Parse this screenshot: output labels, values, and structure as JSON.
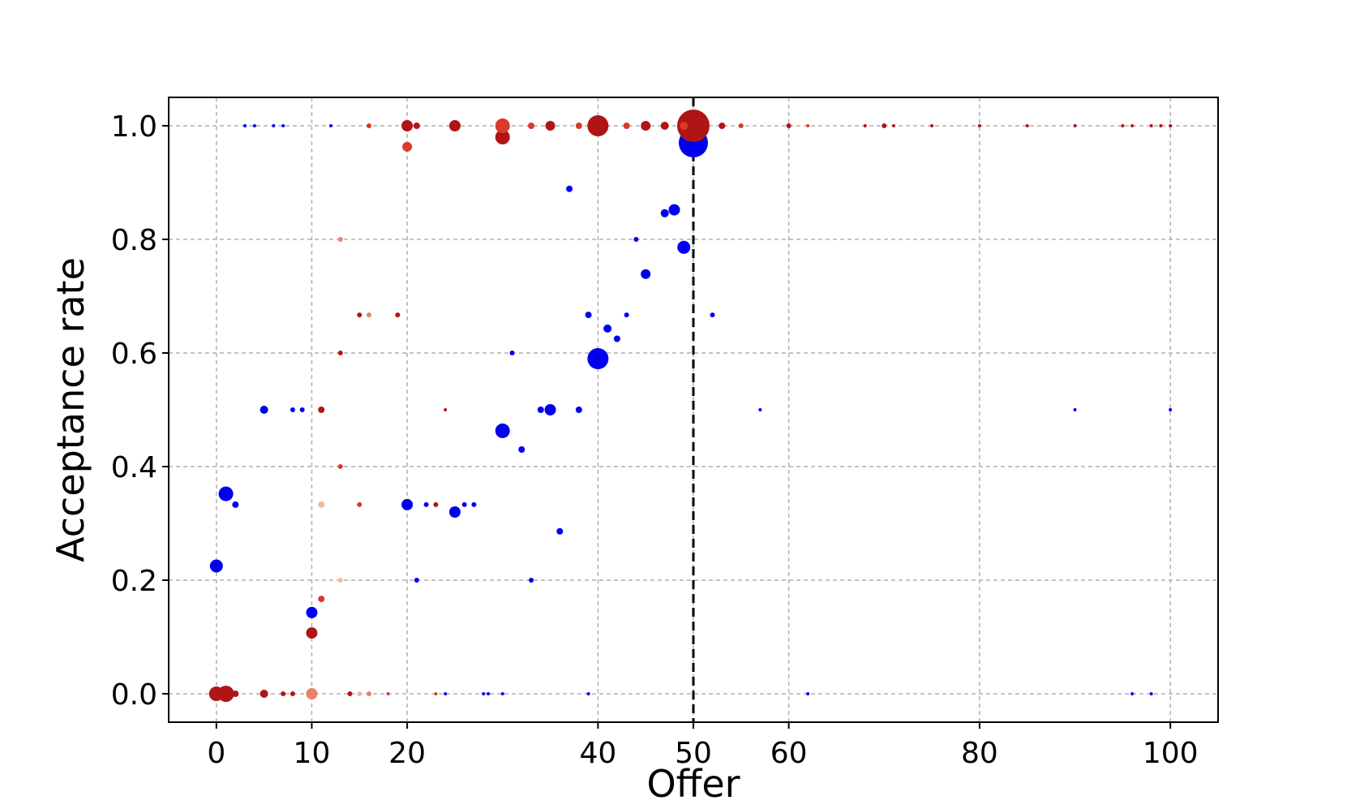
{
  "chart_data": {
    "type": "scatter",
    "title": "",
    "xlabel": "Offer",
    "ylabel": "Acceptance rate",
    "xlim": [
      -5,
      105
    ],
    "ylim": [
      -0.05,
      1.05
    ],
    "x_ticks": [
      0,
      10,
      20,
      40,
      50,
      60,
      80,
      100
    ],
    "x_tick_labels": [
      "0",
      "10",
      "20",
      "40",
      "50",
      "60",
      "80",
      "100"
    ],
    "y_ticks": [
      0.0,
      0.2,
      0.4,
      0.6,
      0.8,
      1.0
    ],
    "y_tick_labels": [
      "0.0",
      "0.2",
      "0.4",
      "0.6",
      "0.8",
      "1.0"
    ],
    "grid": true,
    "reference_line": {
      "x": 50,
      "style": "dashed",
      "color": "#000000"
    },
    "colors": {
      "blue": "#0000ee",
      "dark_red": "#b01515",
      "red": "#d93a2b",
      "salmon": "#e8826a",
      "light_salmon": "#f2b8a0"
    },
    "series": [
      {
        "color": "#0000ee",
        "points": [
          [
            0,
            0.225,
            8
          ],
          [
            1,
            0.352,
            9
          ],
          [
            2,
            0.333,
            4
          ],
          [
            5,
            0.5,
            5
          ],
          [
            8,
            0.5,
            3
          ],
          [
            9,
            0.5,
            3
          ],
          [
            10,
            0.143,
            7
          ],
          [
            20,
            0.333,
            7
          ],
          [
            22,
            0.333,
            3
          ],
          [
            25,
            0.32,
            7
          ],
          [
            26,
            0.333,
            3
          ],
          [
            27,
            0.333,
            3
          ],
          [
            30,
            0.463,
            9
          ],
          [
            31,
            0.6,
            3
          ],
          [
            32,
            0.43,
            4
          ],
          [
            33,
            0.2,
            3
          ],
          [
            34,
            0.5,
            4
          ],
          [
            35,
            0.5,
            7
          ],
          [
            36,
            0.286,
            4
          ],
          [
            37,
            0.889,
            4
          ],
          [
            38,
            0.5,
            4
          ],
          [
            39,
            0.667,
            4
          ],
          [
            40,
            0.59,
            13
          ],
          [
            41,
            0.643,
            5
          ],
          [
            42,
            0.625,
            4
          ],
          [
            43,
            0.667,
            3
          ],
          [
            44,
            0.8,
            3
          ],
          [
            45,
            0.739,
            6
          ],
          [
            47,
            0.846,
            5
          ],
          [
            48,
            0.852,
            7
          ],
          [
            49,
            0.786,
            8
          ],
          [
            50,
            0.97,
            18
          ],
          [
            52,
            0.667,
            3
          ],
          [
            57,
            0.5,
            2
          ],
          [
            21,
            0.2,
            3
          ],
          [
            90,
            0.5,
            2
          ],
          [
            100,
            0.5,
            2
          ],
          [
            3,
            1.0,
            2
          ],
          [
            4,
            1.0,
            2
          ],
          [
            6,
            1.0,
            2
          ],
          [
            7,
            1.0,
            2
          ],
          [
            12,
            1.0,
            2
          ],
          [
            24,
            0.0,
            2
          ],
          [
            28,
            0.0,
            2
          ],
          [
            28.5,
            0.0,
            2
          ],
          [
            30,
            0.0,
            2
          ],
          [
            39,
            0.0,
            2
          ],
          [
            62,
            0.0,
            2
          ],
          [
            96,
            0.0,
            2
          ],
          [
            98,
            0.0,
            2
          ]
        ]
      },
      {
        "color": "#b01515",
        "points": [
          [
            0,
            0.0,
            9
          ],
          [
            1,
            0.0,
            10
          ],
          [
            2,
            0.0,
            4
          ],
          [
            5,
            0.0,
            5
          ],
          [
            7,
            0.0,
            3
          ],
          [
            8,
            0.0,
            3
          ],
          [
            14,
            0.0,
            3
          ],
          [
            10,
            0.107,
            7
          ],
          [
            11,
            0.5,
            4
          ],
          [
            13,
            0.6,
            3
          ],
          [
            15,
            0.667,
            3
          ],
          [
            19,
            0.667,
            3
          ],
          [
            23,
            0.333,
            3
          ],
          [
            24,
            0.5,
            2
          ],
          [
            20,
            1.0,
            7
          ],
          [
            21,
            1.0,
            4
          ],
          [
            25,
            1.0,
            7
          ],
          [
            30,
            0.98,
            9
          ],
          [
            35,
            1.0,
            6
          ],
          [
            40,
            1.0,
            13
          ],
          [
            45,
            1.0,
            6
          ],
          [
            47,
            1.0,
            5
          ],
          [
            50,
            1.0,
            20
          ],
          [
            53,
            1.0,
            4
          ],
          [
            60,
            1.0,
            3
          ],
          [
            68,
            1.0,
            2
          ],
          [
            70,
            1.0,
            3
          ],
          [
            71,
            1.0,
            2
          ],
          [
            75,
            1.0,
            2
          ],
          [
            80,
            1.0,
            2
          ],
          [
            85,
            1.0,
            2
          ],
          [
            90,
            1.0,
            2
          ],
          [
            95,
            1.0,
            2
          ],
          [
            96,
            1.0,
            2
          ],
          [
            98,
            1.0,
            2
          ],
          [
            99,
            1.0,
            2
          ],
          [
            100,
            1.0,
            2
          ]
        ]
      },
      {
        "color": "#d93a2b",
        "points": [
          [
            11,
            0.167,
            4
          ],
          [
            15,
            0.333,
            3
          ],
          [
            20,
            0.963,
            6
          ],
          [
            30,
            1.0,
            9
          ],
          [
            13,
            0.4,
            3
          ],
          [
            16,
            1.0,
            3
          ],
          [
            18,
            0.0,
            2
          ],
          [
            23,
            0.0,
            2
          ],
          [
            33,
            1.0,
            4
          ],
          [
            38,
            1.0,
            4
          ],
          [
            43,
            1.0,
            4
          ],
          [
            49,
            1.0,
            5
          ],
          [
            55,
            1.0,
            3
          ],
          [
            62,
            1.0,
            2
          ]
        ]
      },
      {
        "color": "#e8826a",
        "points": [
          [
            10,
            0.0,
            7
          ],
          [
            13,
            0.8,
            3
          ],
          [
            16,
            0.667,
            3
          ],
          [
            16,
            0.0,
            3
          ]
        ]
      },
      {
        "color": "#f2b8a0",
        "points": [
          [
            11,
            0.333,
            4
          ],
          [
            13,
            0.2,
            3
          ],
          [
            15,
            0.0,
            3
          ]
        ]
      }
    ]
  }
}
